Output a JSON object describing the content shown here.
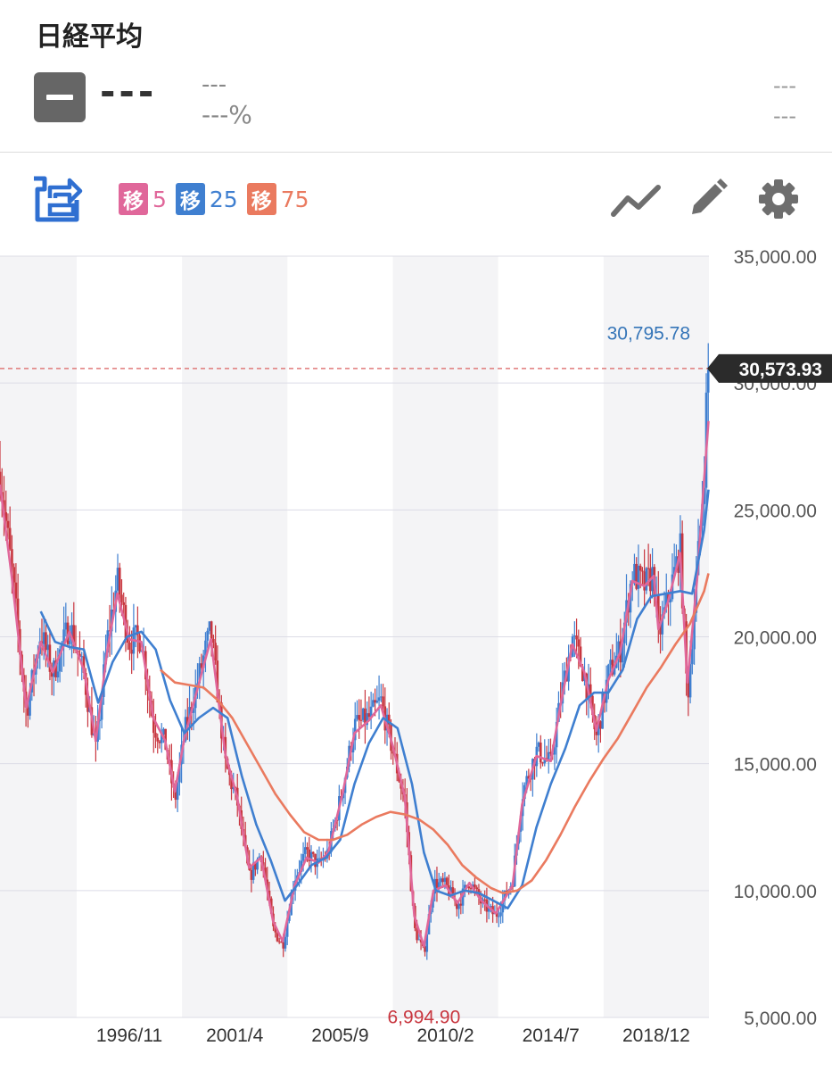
{
  "header": {
    "title": "日経平均",
    "price": "---",
    "change": "---",
    "change_pct": "---%",
    "right_top": "---",
    "right_bottom": "---"
  },
  "toolbar": {
    "icons": [
      "chart-switch-icon",
      "trend-line-icon",
      "pencil-icon",
      "gear-icon"
    ],
    "moving_averages": [
      {
        "tag": "移",
        "period": "5",
        "color": "#e0679a"
      },
      {
        "tag": "移",
        "period": "25",
        "color": "#3f7fd0"
      },
      {
        "tag": "移",
        "period": "75",
        "color": "#ea7a5f"
      }
    ]
  },
  "chart_data": {
    "type": "candlestick",
    "x_tick_labels": [
      "1996/11",
      "2001/4",
      "2005/9",
      "2010/2",
      "2014/7",
      "2018/12"
    ],
    "y_tick_labels": [
      "35,000.00",
      "30,000.00",
      "25,000.00",
      "20,000.00",
      "15,000.00",
      "10,000.00",
      "5,000.00"
    ],
    "ylim": [
      5000,
      35000
    ],
    "xlim": [
      1991.5,
      2021.1
    ],
    "high_annotation": {
      "label": "30,795.78",
      "value": 30795.78,
      "date": 2021.0
    },
    "low_annotation": {
      "label": "6,994.90",
      "value": 6994.9,
      "date": 2009.2
    },
    "current_price": {
      "label": "30,573.93",
      "value": 30573.93
    },
    "up_color": "#3f7fd0",
    "down_color": "#c8363f",
    "price_path": [
      [
        1991.5,
        26500
      ],
      [
        1992.0,
        22500
      ],
      [
        1992.6,
        17000
      ],
      [
        1993.2,
        20200
      ],
      [
        1993.7,
        18500
      ],
      [
        1994.4,
        20500
      ],
      [
        1995.0,
        18500
      ],
      [
        1995.5,
        15500
      ],
      [
        1996.0,
        20000
      ],
      [
        1996.4,
        22200
      ],
      [
        1996.9,
        19800
      ],
      [
        1997.4,
        20000
      ],
      [
        1997.9,
        16500
      ],
      [
        1998.4,
        15800
      ],
      [
        1998.8,
        13500
      ],
      [
        1999.2,
        16200
      ],
      [
        1999.9,
        18800
      ],
      [
        2000.3,
        20300
      ],
      [
        2000.9,
        15000
      ],
      [
        2001.4,
        13500
      ],
      [
        2001.9,
        10500
      ],
      [
        2002.4,
        11500
      ],
      [
        2002.9,
        8500
      ],
      [
        2003.3,
        7800
      ],
      [
        2003.8,
        10500
      ],
      [
        2004.3,
        11500
      ],
      [
        2004.8,
        11000
      ],
      [
        2005.2,
        11500
      ],
      [
        2005.8,
        14000
      ],
      [
        2006.3,
        16500
      ],
      [
        2006.9,
        16800
      ],
      [
        2007.4,
        17500
      ],
      [
        2007.9,
        15500
      ],
      [
        2008.4,
        13500
      ],
      [
        2008.8,
        8500
      ],
      [
        2009.2,
        7500
      ],
      [
        2009.6,
        10300
      ],
      [
        2010.1,
        10200
      ],
      [
        2010.6,
        9400
      ],
      [
        2011.1,
        10400
      ],
      [
        2011.6,
        9500
      ],
      [
        2012.2,
        9000
      ],
      [
        2012.9,
        10400
      ],
      [
        2013.3,
        13800
      ],
      [
        2013.9,
        15500
      ],
      [
        2014.5,
        15000
      ],
      [
        2014.9,
        17500
      ],
      [
        2015.4,
        20000
      ],
      [
        2015.9,
        18500
      ],
      [
        2016.4,
        16000
      ],
      [
        2016.9,
        18500
      ],
      [
        2017.4,
        19500
      ],
      [
        2017.9,
        22500
      ],
      [
        2018.4,
        22000
      ],
      [
        2018.8,
        22500
      ],
      [
        2018.99,
        20000
      ],
      [
        2019.4,
        21500
      ],
      [
        2019.9,
        23500
      ],
      [
        2020.2,
        17500
      ],
      [
        2020.6,
        22500
      ],
      [
        2020.9,
        26500
      ],
      [
        2021.0,
        29500
      ],
      [
        2021.08,
        30574
      ]
    ],
    "series": [
      {
        "name": "移5",
        "color": "#e0679a",
        "points": [
          [
            1991.5,
            26000
          ],
          [
            1992.0,
            22300
          ],
          [
            1992.6,
            17200
          ],
          [
            1993.2,
            19800
          ],
          [
            1993.7,
            18600
          ],
          [
            1994.4,
            20200
          ],
          [
            1995.0,
            18700
          ],
          [
            1995.5,
            15900
          ],
          [
            1996.0,
            19600
          ],
          [
            1996.4,
            21700
          ],
          [
            1996.9,
            19900
          ],
          [
            1997.4,
            19800
          ],
          [
            1997.9,
            16800
          ],
          [
            1998.4,
            15900
          ],
          [
            1998.8,
            13900
          ],
          [
            1999.2,
            16000
          ],
          [
            1999.9,
            18500
          ],
          [
            2000.3,
            19900
          ],
          [
            2000.9,
            15400
          ],
          [
            2001.4,
            13700
          ],
          [
            2001.9,
            10900
          ],
          [
            2002.4,
            11300
          ],
          [
            2002.9,
            8800
          ],
          [
            2003.3,
            8000
          ],
          [
            2003.8,
            10200
          ],
          [
            2004.3,
            11300
          ],
          [
            2004.8,
            11100
          ],
          [
            2005.2,
            11500
          ],
          [
            2005.8,
            13800
          ],
          [
            2006.3,
            16200
          ],
          [
            2006.9,
            16700
          ],
          [
            2007.4,
            17300
          ],
          [
            2007.9,
            15700
          ],
          [
            2008.4,
            13700
          ],
          [
            2008.8,
            9000
          ],
          [
            2009.2,
            7800
          ],
          [
            2009.6,
            10000
          ],
          [
            2010.1,
            10200
          ],
          [
            2010.6,
            9500
          ],
          [
            2011.1,
            10300
          ],
          [
            2011.6,
            9600
          ],
          [
            2012.2,
            9100
          ],
          [
            2012.9,
            10200
          ],
          [
            2013.3,
            13400
          ],
          [
            2013.9,
            15300
          ],
          [
            2014.5,
            15100
          ],
          [
            2014.9,
            17300
          ],
          [
            2015.4,
            19700
          ],
          [
            2015.9,
            18600
          ],
          [
            2016.4,
            16300
          ],
          [
            2016.9,
            18300
          ],
          [
            2017.4,
            19400
          ],
          [
            2017.9,
            22200
          ],
          [
            2018.4,
            22000
          ],
          [
            2018.8,
            22400
          ],
          [
            2018.99,
            20300
          ],
          [
            2019.4,
            21400
          ],
          [
            2019.9,
            23300
          ],
          [
            2020.2,
            18200
          ],
          [
            2020.6,
            22200
          ],
          [
            2020.9,
            26200
          ],
          [
            2021.08,
            28500
          ]
        ]
      },
      {
        "name": "移25",
        "color": "#3f7fd0",
        "points": [
          [
            1993.2,
            21000
          ],
          [
            1993.8,
            19800
          ],
          [
            1994.4,
            19600
          ],
          [
            1995.0,
            19500
          ],
          [
            1995.6,
            17400
          ],
          [
            1996.2,
            19000
          ],
          [
            1996.8,
            20000
          ],
          [
            1997.4,
            20200
          ],
          [
            1998.0,
            19500
          ],
          [
            1998.6,
            17500
          ],
          [
            1999.2,
            16200
          ],
          [
            1999.8,
            16800
          ],
          [
            2000.4,
            17200
          ],
          [
            2001.0,
            16800
          ],
          [
            2001.6,
            14500
          ],
          [
            2002.2,
            12600
          ],
          [
            2002.8,
            11200
          ],
          [
            2003.4,
            9600
          ],
          [
            2003.9,
            10200
          ],
          [
            2004.5,
            11000
          ],
          [
            2005.1,
            11300
          ],
          [
            2005.7,
            12000
          ],
          [
            2006.3,
            14200
          ],
          [
            2006.9,
            15800
          ],
          [
            2007.5,
            16800
          ],
          [
            2008.1,
            16400
          ],
          [
            2008.7,
            14200
          ],
          [
            2009.2,
            11500
          ],
          [
            2009.7,
            10000
          ],
          [
            2010.3,
            9800
          ],
          [
            2010.9,
            10000
          ],
          [
            2011.5,
            9900
          ],
          [
            2012.1,
            9600
          ],
          [
            2012.7,
            9300
          ],
          [
            2013.3,
            10200
          ],
          [
            2013.9,
            12500
          ],
          [
            2014.5,
            14200
          ],
          [
            2015.1,
            15600
          ],
          [
            2015.7,
            17300
          ],
          [
            2016.3,
            17800
          ],
          [
            2016.9,
            17800
          ],
          [
            2017.5,
            18700
          ],
          [
            2018.1,
            20700
          ],
          [
            2018.7,
            21600
          ],
          [
            2019.3,
            21700
          ],
          [
            2019.9,
            21800
          ],
          [
            2020.4,
            21700
          ],
          [
            2020.9,
            24200
          ],
          [
            2021.08,
            25800
          ]
        ]
      },
      {
        "name": "移75",
        "color": "#ea7a5f",
        "points": [
          [
            1998.2,
            18700
          ],
          [
            1998.8,
            18200
          ],
          [
            1999.4,
            18100
          ],
          [
            2000.0,
            18000
          ],
          [
            2000.6,
            17500
          ],
          [
            2001.2,
            16800
          ],
          [
            2001.8,
            15800
          ],
          [
            2002.4,
            14800
          ],
          [
            2003.0,
            13800
          ],
          [
            2003.6,
            13000
          ],
          [
            2004.2,
            12300
          ],
          [
            2004.8,
            12000
          ],
          [
            2005.4,
            12000
          ],
          [
            2006.0,
            12200
          ],
          [
            2006.6,
            12600
          ],
          [
            2007.2,
            12900
          ],
          [
            2007.8,
            13100
          ],
          [
            2008.4,
            13000
          ],
          [
            2009.0,
            12800
          ],
          [
            2009.6,
            12400
          ],
          [
            2010.2,
            11800
          ],
          [
            2010.8,
            11000
          ],
          [
            2011.4,
            10500
          ],
          [
            2012.0,
            10100
          ],
          [
            2012.5,
            9900
          ],
          [
            2013.1,
            10000
          ],
          [
            2013.7,
            10400
          ],
          [
            2014.3,
            11200
          ],
          [
            2014.9,
            12200
          ],
          [
            2015.5,
            13300
          ],
          [
            2016.1,
            14300
          ],
          [
            2016.7,
            15200
          ],
          [
            2017.3,
            16000
          ],
          [
            2017.9,
            17000
          ],
          [
            2018.5,
            18000
          ],
          [
            2019.1,
            18800
          ],
          [
            2019.7,
            19700
          ],
          [
            2020.3,
            20500
          ],
          [
            2020.9,
            21800
          ],
          [
            2021.08,
            22500
          ]
        ]
      }
    ]
  }
}
